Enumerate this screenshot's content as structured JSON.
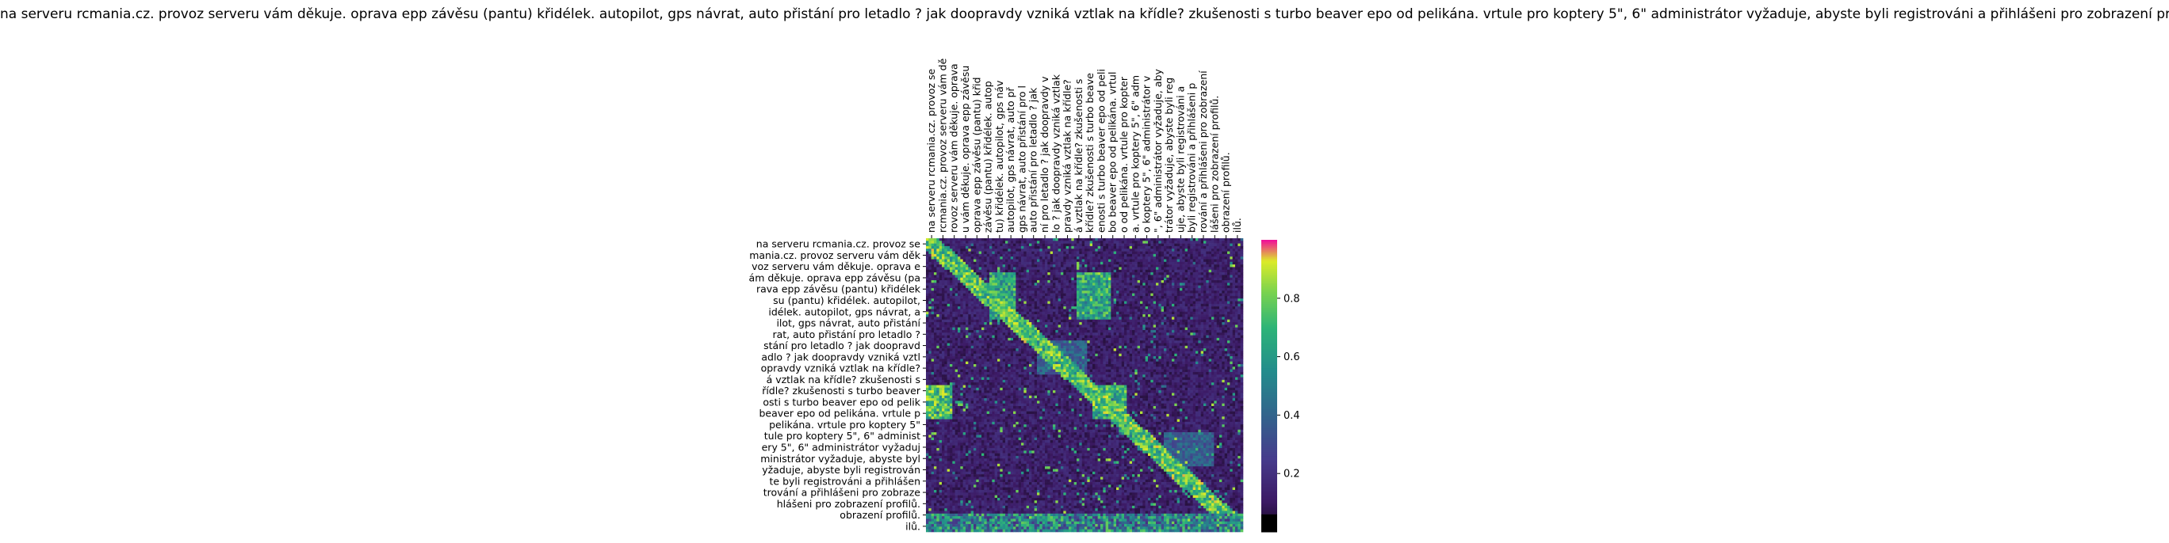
{
  "chart_data": {
    "type": "heatmap",
    "title": "na serveru rcmania.cz. provoz serveru vám děkuje. oprava epp závěsu (pantu) křidélek. autopilot, gps návrat, auto přistání pro letadlo ? jak doopravdy vzniká vztlak na křídle? zkušenosti s turbo beaver epo od pelikána. vrtule pro koptery 5\", 6\" administrátor vyžaduje, abyste byli registrováni a přihlášeni pro zobrazení profilů.",
    "x_tick_labels": [
      "na serveru rcmania.cz. provoz se",
      "rcmania.cz. provoz serveru vám dě",
      "rovoz serveru vám děkuje. oprava",
      "u vám děkuje. oprava epp závěsu",
      "oprava epp závěsu (pantu) křid",
      "závěsu (pantu) křidélek. autop",
      "tu) křidélek. autopilot, gps náv",
      "autopilot, gps návrat, auto př",
      "gps návrat, auto přistání pro l",
      "auto přistání pro letadlo ? jak",
      "ní pro letadlo ? jak doopravdy v",
      "lo ? jak doopravdy vzniká vztlak",
      "pravdy vzniká vztlak na křídle?",
      "á vztlak na křídle? zkušenosti s",
      "křídle? zkušenosti s turbo beave",
      "enosti s turbo beaver epo od peli",
      "bo beaver epo od pelikána. vrtul",
      "o od pelikána. vrtule pro kopter",
      "a. vrtule pro koptery 5\", 6\" adm",
      "o koptery 5\", 6\" administrátor v",
      "\", 6\" administrátor vyžaduje, aby",
      "trátor vyžaduje, abyste byli reg",
      "uje, abyste byli registrováni a",
      "byli registrováni a přihlášeni p",
      "rování a přihlášeni pro zobrazení",
      "lášeni pro zobrazení profilů.",
      "obrazení profilů.",
      "ilů."
    ],
    "y_tick_labels": [
      "na serveru rcmania.cz. provoz se",
      "mania.cz. provoz serveru vám děk",
      "voz serveru vám děkuje. oprava e",
      "ám děkuje. oprava epp závěsu (pa",
      "rava epp závěsu (pantu) křidélek",
      "su (pantu) křidélek. autopilot,",
      "idélek. autopilot, gps návrat, a",
      "ilot, gps návrat, auto přistání",
      "rat, auto přistání pro letadlo ?",
      "stání pro letadlo ? jak doopravd",
      "adlo ? jak doopravdy vzniká vztl",
      "opravdy vzniká vztlak na křídle?",
      "á vztlak na křídle? zkušenosti s",
      "řídle? zkušenosti s turbo beaver",
      "osti s turbo beaver epo od pelik",
      "beaver epo od pelikána. vrtule p",
      "pelikána. vrtule pro koptery 5\"",
      "tule pro koptery 5\", 6\" administ",
      "ery 5\", 6\" administrátor vyžaduj",
      "ministrátor vyžaduje, abyste byl",
      "yžaduje, abyste byli registrován",
      "te byli registrováni a přihlášen",
      "trování a přihlášeni pro zobraze",
      "hlášeni pro zobrazení profilů.",
      "obrazení profilů.",
      "ilů."
    ],
    "colorbar": {
      "ticks": [
        0.2,
        0.4,
        0.6,
        0.8
      ],
      "range": [
        0,
        1
      ],
      "colormap": "viridis-like with black low end and magenta top"
    },
    "matrix_description_blocks": [
      {
        "rows": [
          3,
          7
        ],
        "cols": [
          8,
          11
        ],
        "level": 0.75
      },
      {
        "rows": [
          3,
          7
        ],
        "cols": [
          19,
          23
        ],
        "level": 0.75
      },
      {
        "rows": [
          9,
          12
        ],
        "cols": [
          14,
          20
        ],
        "level": 0.45
      },
      {
        "rows": [
          13,
          16
        ],
        "cols": [
          0,
          3
        ],
        "level": 0.85
      },
      {
        "rows": [
          13,
          16
        ],
        "cols": [
          21,
          25
        ],
        "level": 0.8
      },
      {
        "rows": [
          17,
          20
        ],
        "cols": [
          30,
          36
        ],
        "level": 0.45
      }
    ],
    "grid": false
  }
}
